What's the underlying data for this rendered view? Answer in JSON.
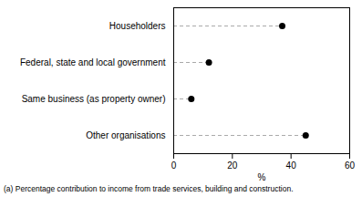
{
  "chart_data": {
    "type": "dot",
    "orientation": "horizontal",
    "categories": [
      "Householders",
      "Federal, state and local government",
      "Same business (as property owner)",
      "Other organisations"
    ],
    "values": [
      37,
      12,
      6,
      45
    ],
    "color": "#000000",
    "line_style": "dashed",
    "xlim": [
      0,
      60
    ],
    "xticks": [
      0,
      20,
      40,
      60
    ],
    "xlabel": "%",
    "footnote": "(a) Percentage contribution to income from trade services, building and construction."
  }
}
